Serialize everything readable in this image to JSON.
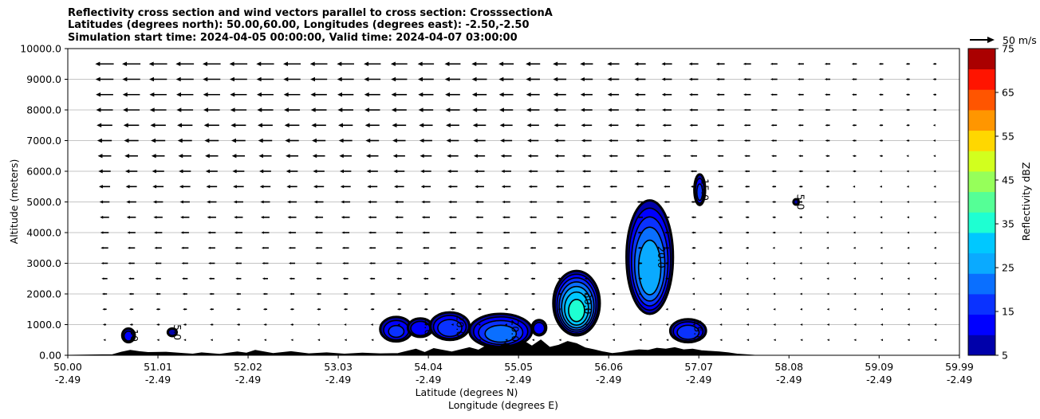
{
  "chart_data": {
    "type": "contour",
    "title_lines": [
      "Reflectivity cross section and wind vectors parallel to cross section: CrosssectionA",
      "Latitudes (degrees north): 50.00,60.00, Longitudes (degrees east): -2.50,-2.50",
      "Simulation start time: 2024-04-05 00:00:00, Valid time: 2024-04-07 03:00:00"
    ],
    "xlabel_lines": [
      "Latitude (degrees N)",
      "Longitude (degrees E)"
    ],
    "ylabel": "Altitude (meters)",
    "xlim": [
      50.0,
      59.99
    ],
    "ylim": [
      0,
      10000
    ],
    "x_ticks": [
      {
        "lat": "50.00",
        "lon": "-2.49",
        "value": 50.0
      },
      {
        "lat": "51.01",
        "lon": "-2.49",
        "value": 51.01
      },
      {
        "lat": "52.02",
        "lon": "-2.49",
        "value": 52.02
      },
      {
        "lat": "53.03",
        "lon": "-2.49",
        "value": 53.03
      },
      {
        "lat": "54.04",
        "lon": "-2.49",
        "value": 54.04
      },
      {
        "lat": "55.05",
        "lon": "-2.49",
        "value": 55.05
      },
      {
        "lat": "56.06",
        "lon": "-2.49",
        "value": 56.06
      },
      {
        "lat": "57.07",
        "lon": "-2.49",
        "value": 57.07
      },
      {
        "lat": "58.08",
        "lon": "-2.49",
        "value": 58.08
      },
      {
        "lat": "59.09",
        "lon": "-2.49",
        "value": 59.09
      },
      {
        "lat": "59.99",
        "lon": "-2.49",
        "value": 59.99
      }
    ],
    "y_ticks": [
      {
        "label": "0.00",
        "value": 0
      },
      {
        "label": "1000.0",
        "value": 1000
      },
      {
        "label": "2000.0",
        "value": 2000
      },
      {
        "label": "3000.0",
        "value": 3000
      },
      {
        "label": "4000.0",
        "value": 4000
      },
      {
        "label": "5000.0",
        "value": 5000
      },
      {
        "label": "6000.0",
        "value": 6000
      },
      {
        "label": "7000.0",
        "value": 7000
      },
      {
        "label": "8000.0",
        "value": 8000
      },
      {
        "label": "9000.0",
        "value": 9000
      },
      {
        "label": "10000.0",
        "value": 10000
      }
    ],
    "grid": "horizontal",
    "colorbar": {
      "label": "Reflectivity dBZ",
      "min": 5,
      "max": 75,
      "step": 5,
      "tick_values": [
        5,
        15,
        25,
        35,
        45,
        55,
        65,
        75
      ],
      "tick_labels": [
        "5",
        "15",
        "25",
        "35",
        "45",
        "55",
        "65",
        "75"
      ],
      "colors": [
        "#0000aa",
        "#0000ff",
        "#0a32ff",
        "#0a6fff",
        "#0aaaff",
        "#00c8ff",
        "#1effd2",
        "#55ff96",
        "#96ff5a",
        "#d2ff1e",
        "#ffd700",
        "#ff9600",
        "#ff5500",
        "#ff1400",
        "#aa0000"
      ]
    },
    "quiver_key": {
      "label": "50 m/s",
      "speed": 50
    },
    "wind_x": [
      50.0,
      50.3,
      50.6,
      50.9,
      51.2,
      51.5,
      51.8,
      52.1,
      52.4,
      52.7,
      53.0,
      53.3,
      53.6,
      53.9,
      54.2,
      54.5,
      54.8,
      55.1,
      55.4,
      55.7,
      56.0,
      56.3,
      56.6,
      56.9,
      57.2,
      57.5,
      57.8,
      58.1,
      58.4,
      58.7,
      59.0,
      59.3,
      59.6,
      59.9
    ],
    "wind_levels": [
      500,
      1000,
      1500,
      2000,
      2500,
      3000,
      3500,
      4000,
      4500,
      5000,
      5500,
      6000,
      6500,
      7000,
      7500,
      8000,
      8500,
      9000,
      9500
    ],
    "wind_profile_levels": [
      500,
      2000,
      3500,
      5000,
      6500,
      8000,
      9500
    ],
    "wind_profile_speed": [
      3,
      6,
      9,
      12,
      16,
      20,
      22
    ],
    "wind_decay_lat": [
      50.0,
      51.5,
      53.0,
      54.5,
      56.0,
      57.0,
      58.0,
      59.0,
      59.99
    ],
    "wind_decay_factor": [
      1.0,
      0.97,
      0.92,
      0.82,
      0.62,
      0.45,
      0.32,
      0.22,
      0.15
    ],
    "terrain": {
      "x": [
        50.0,
        50.5,
        50.6,
        50.7,
        50.8,
        50.9,
        51.1,
        51.3,
        51.4,
        51.5,
        51.7,
        51.9,
        52.0,
        52.1,
        52.3,
        52.5,
        52.7,
        52.9,
        53.1,
        53.3,
        53.5,
        53.7,
        53.9,
        54.0,
        54.1,
        54.3,
        54.4,
        54.5,
        54.6,
        54.7,
        54.8,
        54.9,
        55.0,
        55.1,
        55.2,
        55.3,
        55.4,
        55.5,
        55.6,
        55.7,
        55.8,
        55.9,
        56.0,
        56.1,
        56.2,
        56.3,
        56.4,
        56.5,
        56.6,
        56.7,
        56.8,
        56.9,
        57.0,
        57.1,
        57.2,
        57.3,
        57.4,
        57.5,
        57.6,
        57.7,
        59.99
      ],
      "y": [
        0,
        20,
        100,
        160,
        120,
        90,
        100,
        60,
        40,
        80,
        30,
        110,
        70,
        160,
        60,
        120,
        50,
        80,
        40,
        70,
        50,
        60,
        200,
        90,
        220,
        110,
        180,
        250,
        170,
        330,
        220,
        400,
        280,
        480,
        300,
        500,
        260,
        330,
        450,
        380,
        240,
        180,
        110,
        60,
        90,
        140,
        180,
        160,
        230,
        200,
        250,
        180,
        200,
        150,
        130,
        110,
        80,
        40,
        20,
        0,
        0
      ]
    },
    "contour_levels": [
      5,
      10,
      15,
      20,
      25,
      30,
      35
    ],
    "cells": [
      {
        "x": 50.68,
        "z": 650,
        "w": 0.07,
        "h": 450,
        "peak": 12,
        "label": "10"
      },
      {
        "x": 51.17,
        "z": 750,
        "w": 0.05,
        "h": 250,
        "peak": 9,
        "label": "5.0"
      },
      {
        "x": 53.68,
        "z": 850,
        "w": 0.18,
        "h": 800,
        "peak": 15,
        "label": ""
      },
      {
        "x": 53.95,
        "z": 900,
        "w": 0.14,
        "h": 600,
        "peak": 14,
        "label": "5.0"
      },
      {
        "x": 54.28,
        "z": 950,
        "w": 0.22,
        "h": 900,
        "peak": 18,
        "label": "20.0"
      },
      {
        "x": 54.85,
        "z": 800,
        "w": 0.35,
        "h": 1100,
        "peak": 22,
        "label": "20.0"
      },
      {
        "x": 55.28,
        "z": 900,
        "w": 0.08,
        "h": 500,
        "peak": 14,
        "label": ""
      },
      {
        "x": 55.7,
        "z": 1700,
        "w": 0.26,
        "h": 2100,
        "peak": 36,
        "label": "30.0"
      },
      {
        "x": 56.52,
        "z": 3200,
        "w": 0.26,
        "h": 3700,
        "peak": 28,
        "label": "20.0"
      },
      {
        "x": 56.95,
        "z": 800,
        "w": 0.2,
        "h": 750,
        "peak": 18,
        "label": "15.0"
      },
      {
        "x": 57.08,
        "z": 5400,
        "w": 0.06,
        "h": 1000,
        "peak": 16,
        "label": "15.0"
      },
      {
        "x": 58.16,
        "z": 5000,
        "w": 0.03,
        "h": 180,
        "peak": 8,
        "label": "5.0"
      }
    ]
  }
}
